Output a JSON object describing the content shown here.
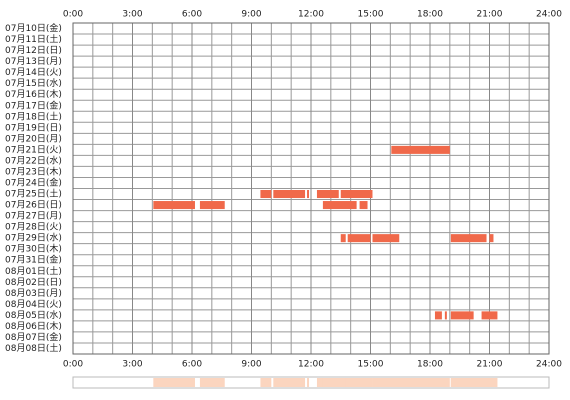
{
  "chart_data": {
    "type": "timeline",
    "categories": [
      "07月10日(金)",
      "07月11日(土)",
      "07月12日(日)",
      "07月13日(月)",
      "07月14日(火)",
      "07月15日(水)",
      "07月16日(木)",
      "07月17日(金)",
      "07月18日(土)",
      "07月19日(日)",
      "07月20日(月)",
      "07月21日(火)",
      "07月22日(水)",
      "07月23日(木)",
      "07月24日(金)",
      "07月25日(土)",
      "07月26日(日)",
      "07月27日(月)",
      "07月28日(火)",
      "07月29日(水)",
      "07月30日(木)",
      "07月31日(金)",
      "08月01日(土)",
      "08月02日(日)",
      "08月03日(月)",
      "08月04日(火)",
      "08月05日(水)",
      "08月06日(木)",
      "08月07日(金)",
      "08月08日(土)"
    ],
    "values": [
      [],
      [],
      [],
      [],
      [],
      [],
      [],
      [],
      [],
      [],
      [],
      [
        [
          16.05,
          19.0
        ]
      ],
      [],
      [],
      [],
      [
        [
          9.45,
          10.0
        ],
        [
          10.1,
          11.7
        ],
        [
          11.8,
          11.9
        ],
        [
          12.3,
          13.4
        ],
        [
          13.5,
          15.1
        ]
      ],
      [
        [
          4.05,
          6.15
        ],
        [
          6.4,
          7.65
        ],
        [
          12.6,
          14.3
        ],
        [
          14.45,
          14.85
        ]
      ],
      [],
      [],
      [
        [
          13.5,
          13.75
        ],
        [
          13.85,
          15.0
        ],
        [
          15.1,
          16.45
        ],
        [
          19.05,
          20.85
        ],
        [
          21.0,
          21.2
        ]
      ],
      [],
      [],
      [],
      [],
      [],
      [],
      [
        [
          18.25,
          18.6
        ],
        [
          18.75,
          18.85
        ],
        [
          19.05,
          20.2
        ],
        [
          20.6,
          21.4
        ]
      ],
      [],
      [],
      []
    ],
    "color": "#f0694a",
    "summary_color": "#fbd5bf",
    "xlim": [
      0,
      24
    ],
    "xticks": [
      {
        "value": 0,
        "label": "0:00"
      },
      {
        "value": 3,
        "label": "3:00"
      },
      {
        "value": 6,
        "label": "6:00"
      },
      {
        "value": 9,
        "label": "9:00"
      },
      {
        "value": 12,
        "label": "12:00"
      },
      {
        "value": 15,
        "label": "15:00"
      },
      {
        "value": 18,
        "label": "18:00"
      },
      {
        "value": 21,
        "label": "21:00"
      },
      {
        "value": 24,
        "label": "24:00"
      }
    ],
    "xgrid_step": 1
  }
}
